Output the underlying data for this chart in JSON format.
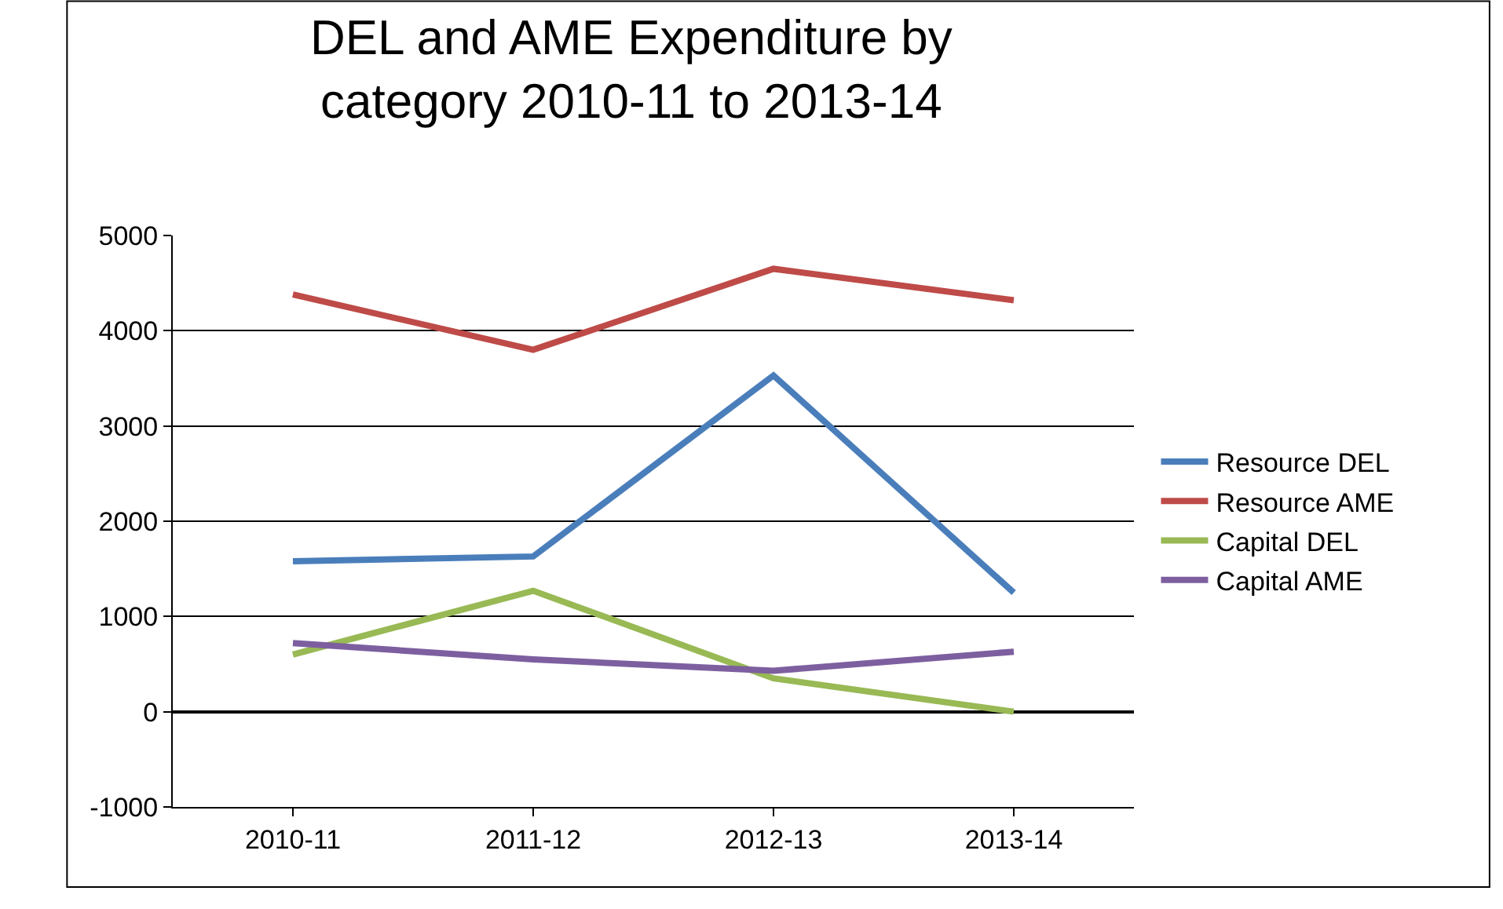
{
  "chart_data": {
    "type": "line",
    "title": "DEL and AME Expenditure by category 2010-11 to 2013-14",
    "categories": [
      "2010-11",
      "2011-12",
      "2012-13",
      "2013-14"
    ],
    "series": [
      {
        "name": "Resource DEL",
        "color": "#4a7ebb",
        "values": [
          1580,
          1630,
          3530,
          1250
        ]
      },
      {
        "name": "Resource AME",
        "color": "#be4b48",
        "values": [
          4380,
          3800,
          4650,
          4320
        ]
      },
      {
        "name": "Capital DEL",
        "color": "#98b954",
        "values": [
          600,
          1270,
          350,
          0
        ]
      },
      {
        "name": "Capital AME",
        "color": "#7d5fa0",
        "values": [
          720,
          550,
          430,
          630
        ]
      }
    ],
    "ylim": [
      -1000,
      5000
    ],
    "yticks": [
      -1000,
      0,
      1000,
      2000,
      3000,
      4000,
      5000
    ],
    "grid": "y",
    "legend": "right",
    "marker": "none",
    "line_style": "solid"
  }
}
